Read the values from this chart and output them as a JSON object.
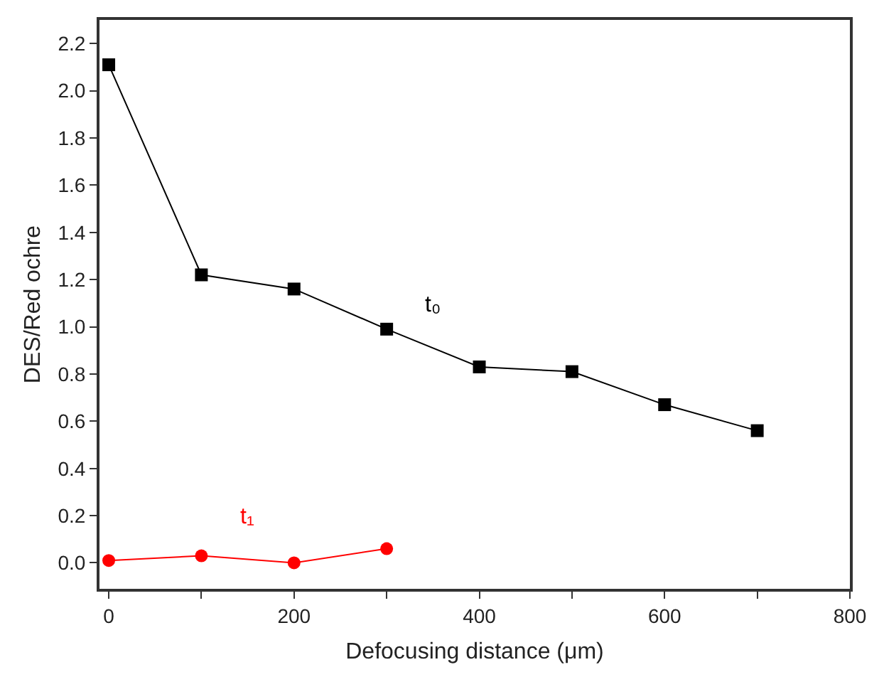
{
  "chart_data": {
    "type": "line",
    "xlabel": "Defocusing distance (μm)",
    "ylabel": "DES/Red ochre",
    "line_style": "solid",
    "legend": false,
    "xlim": [
      -10,
      800
    ],
    "ylim": [
      -0.11,
      2.3
    ],
    "xticks": [
      0,
      {
        "value": 100,
        "label": null
      },
      200,
      {
        "value": 300,
        "label": null
      },
      400,
      {
        "value": 500,
        "label": null
      },
      600,
      {
        "value": 700,
        "label": null
      },
      800
    ],
    "yticks": [
      {
        "value": 0,
        "label": "0.0"
      },
      0.2,
      0.4,
      0.6,
      0.8,
      {
        "value": 1,
        "label": "1.0"
      },
      1.2,
      1.4,
      1.6,
      1.8,
      {
        "value": 2,
        "label": "2.0"
      },
      2.2
    ],
    "series": [
      {
        "name": "t₀",
        "color": "#000000",
        "marker": "square",
        "x": [
          0,
          100,
          200,
          300,
          400,
          500,
          600,
          700
        ],
        "values": [
          2.11,
          1.22,
          1.16,
          0.99,
          0.83,
          0.81,
          0.67,
          0.56
        ]
      },
      {
        "name": "t₁",
        "color": "#ff0000",
        "marker": "circle",
        "x": [
          0,
          100,
          200,
          300
        ],
        "values": [
          0.01,
          0.03,
          0.0,
          0.06
        ]
      }
    ]
  }
}
